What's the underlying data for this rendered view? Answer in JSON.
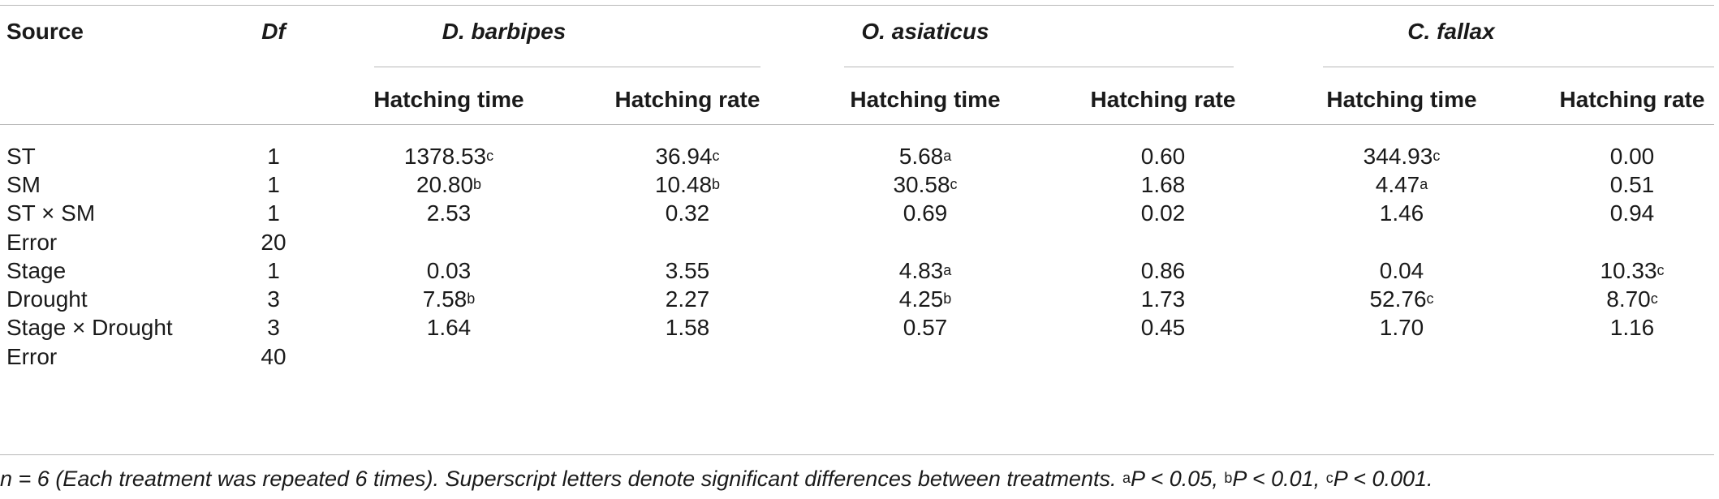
{
  "header": {
    "source": "Source",
    "df": "Df",
    "groups": [
      {
        "species": "D. barbipes",
        "col1": "Hatching time",
        "col2": "Hatching rate"
      },
      {
        "species": "O. asiaticus",
        "col1": "Hatching time",
        "col2": "Hatching rate"
      },
      {
        "species": "C. fallax",
        "col1": "Hatching time",
        "col2": "Hatching rate"
      }
    ]
  },
  "rows": [
    {
      "source": "ST",
      "df": "1",
      "vals": [
        [
          "1378.53",
          "c"
        ],
        [
          "36.94",
          "c"
        ],
        [
          "5.68",
          "a"
        ],
        [
          "0.60",
          ""
        ],
        [
          "344.93",
          "c"
        ],
        [
          "0.00",
          ""
        ]
      ]
    },
    {
      "source": "SM",
      "df": "1",
      "vals": [
        [
          "20.80",
          "b"
        ],
        [
          "10.48",
          "b"
        ],
        [
          "30.58",
          "c"
        ],
        [
          "1.68",
          ""
        ],
        [
          "4.47",
          "a"
        ],
        [
          "0.51",
          ""
        ]
      ]
    },
    {
      "source": "ST × SM",
      "df": "1",
      "vals": [
        [
          "2.53",
          ""
        ],
        [
          "0.32",
          ""
        ],
        [
          "0.69",
          ""
        ],
        [
          "0.02",
          ""
        ],
        [
          "1.46",
          ""
        ],
        [
          "0.94",
          ""
        ]
      ]
    },
    {
      "source": "Error",
      "df": "20",
      "vals": [
        [
          "",
          ""
        ],
        [
          "",
          ""
        ],
        [
          "",
          ""
        ],
        [
          "",
          ""
        ],
        [
          "",
          ""
        ],
        [
          "",
          ""
        ]
      ]
    },
    {
      "source": "Stage",
      "df": "1",
      "vals": [
        [
          "0.03",
          ""
        ],
        [
          "3.55",
          ""
        ],
        [
          "4.83",
          "a"
        ],
        [
          "0.86",
          ""
        ],
        [
          "0.04",
          ""
        ],
        [
          "10.33",
          "c"
        ]
      ]
    },
    {
      "source": "Drought",
      "df": "3",
      "vals": [
        [
          "7.58",
          "b"
        ],
        [
          "2.27",
          ""
        ],
        [
          "4.25",
          "b"
        ],
        [
          "1.73",
          ""
        ],
        [
          "52.76",
          "c"
        ],
        [
          "8.70",
          "c"
        ]
      ]
    },
    {
      "source": "Stage × Drought",
      "df": "3",
      "vals": [
        [
          "1.64",
          ""
        ],
        [
          "1.58",
          ""
        ],
        [
          "0.57",
          ""
        ],
        [
          "0.45",
          ""
        ],
        [
          "1.70",
          ""
        ],
        [
          "1.16",
          ""
        ]
      ]
    },
    {
      "source": "Error",
      "df": "40",
      "vals": [
        [
          "",
          ""
        ],
        [
          "",
          ""
        ],
        [
          "",
          ""
        ],
        [
          "",
          ""
        ],
        [
          "",
          ""
        ],
        [
          "",
          ""
        ]
      ]
    }
  ],
  "footnote": {
    "n_eq": "n = 6",
    "text": " (Each treatment was repeated 6 times). Superscript letters denote significant differences between treatments. ",
    "sig": [
      {
        "letter": "a",
        "text": "P < 0.05"
      },
      {
        "letter": "b",
        "text": "P < 0.01"
      },
      {
        "letter": "c",
        "text": "P < 0.001"
      }
    ],
    "sep": ", ",
    "end": "."
  }
}
